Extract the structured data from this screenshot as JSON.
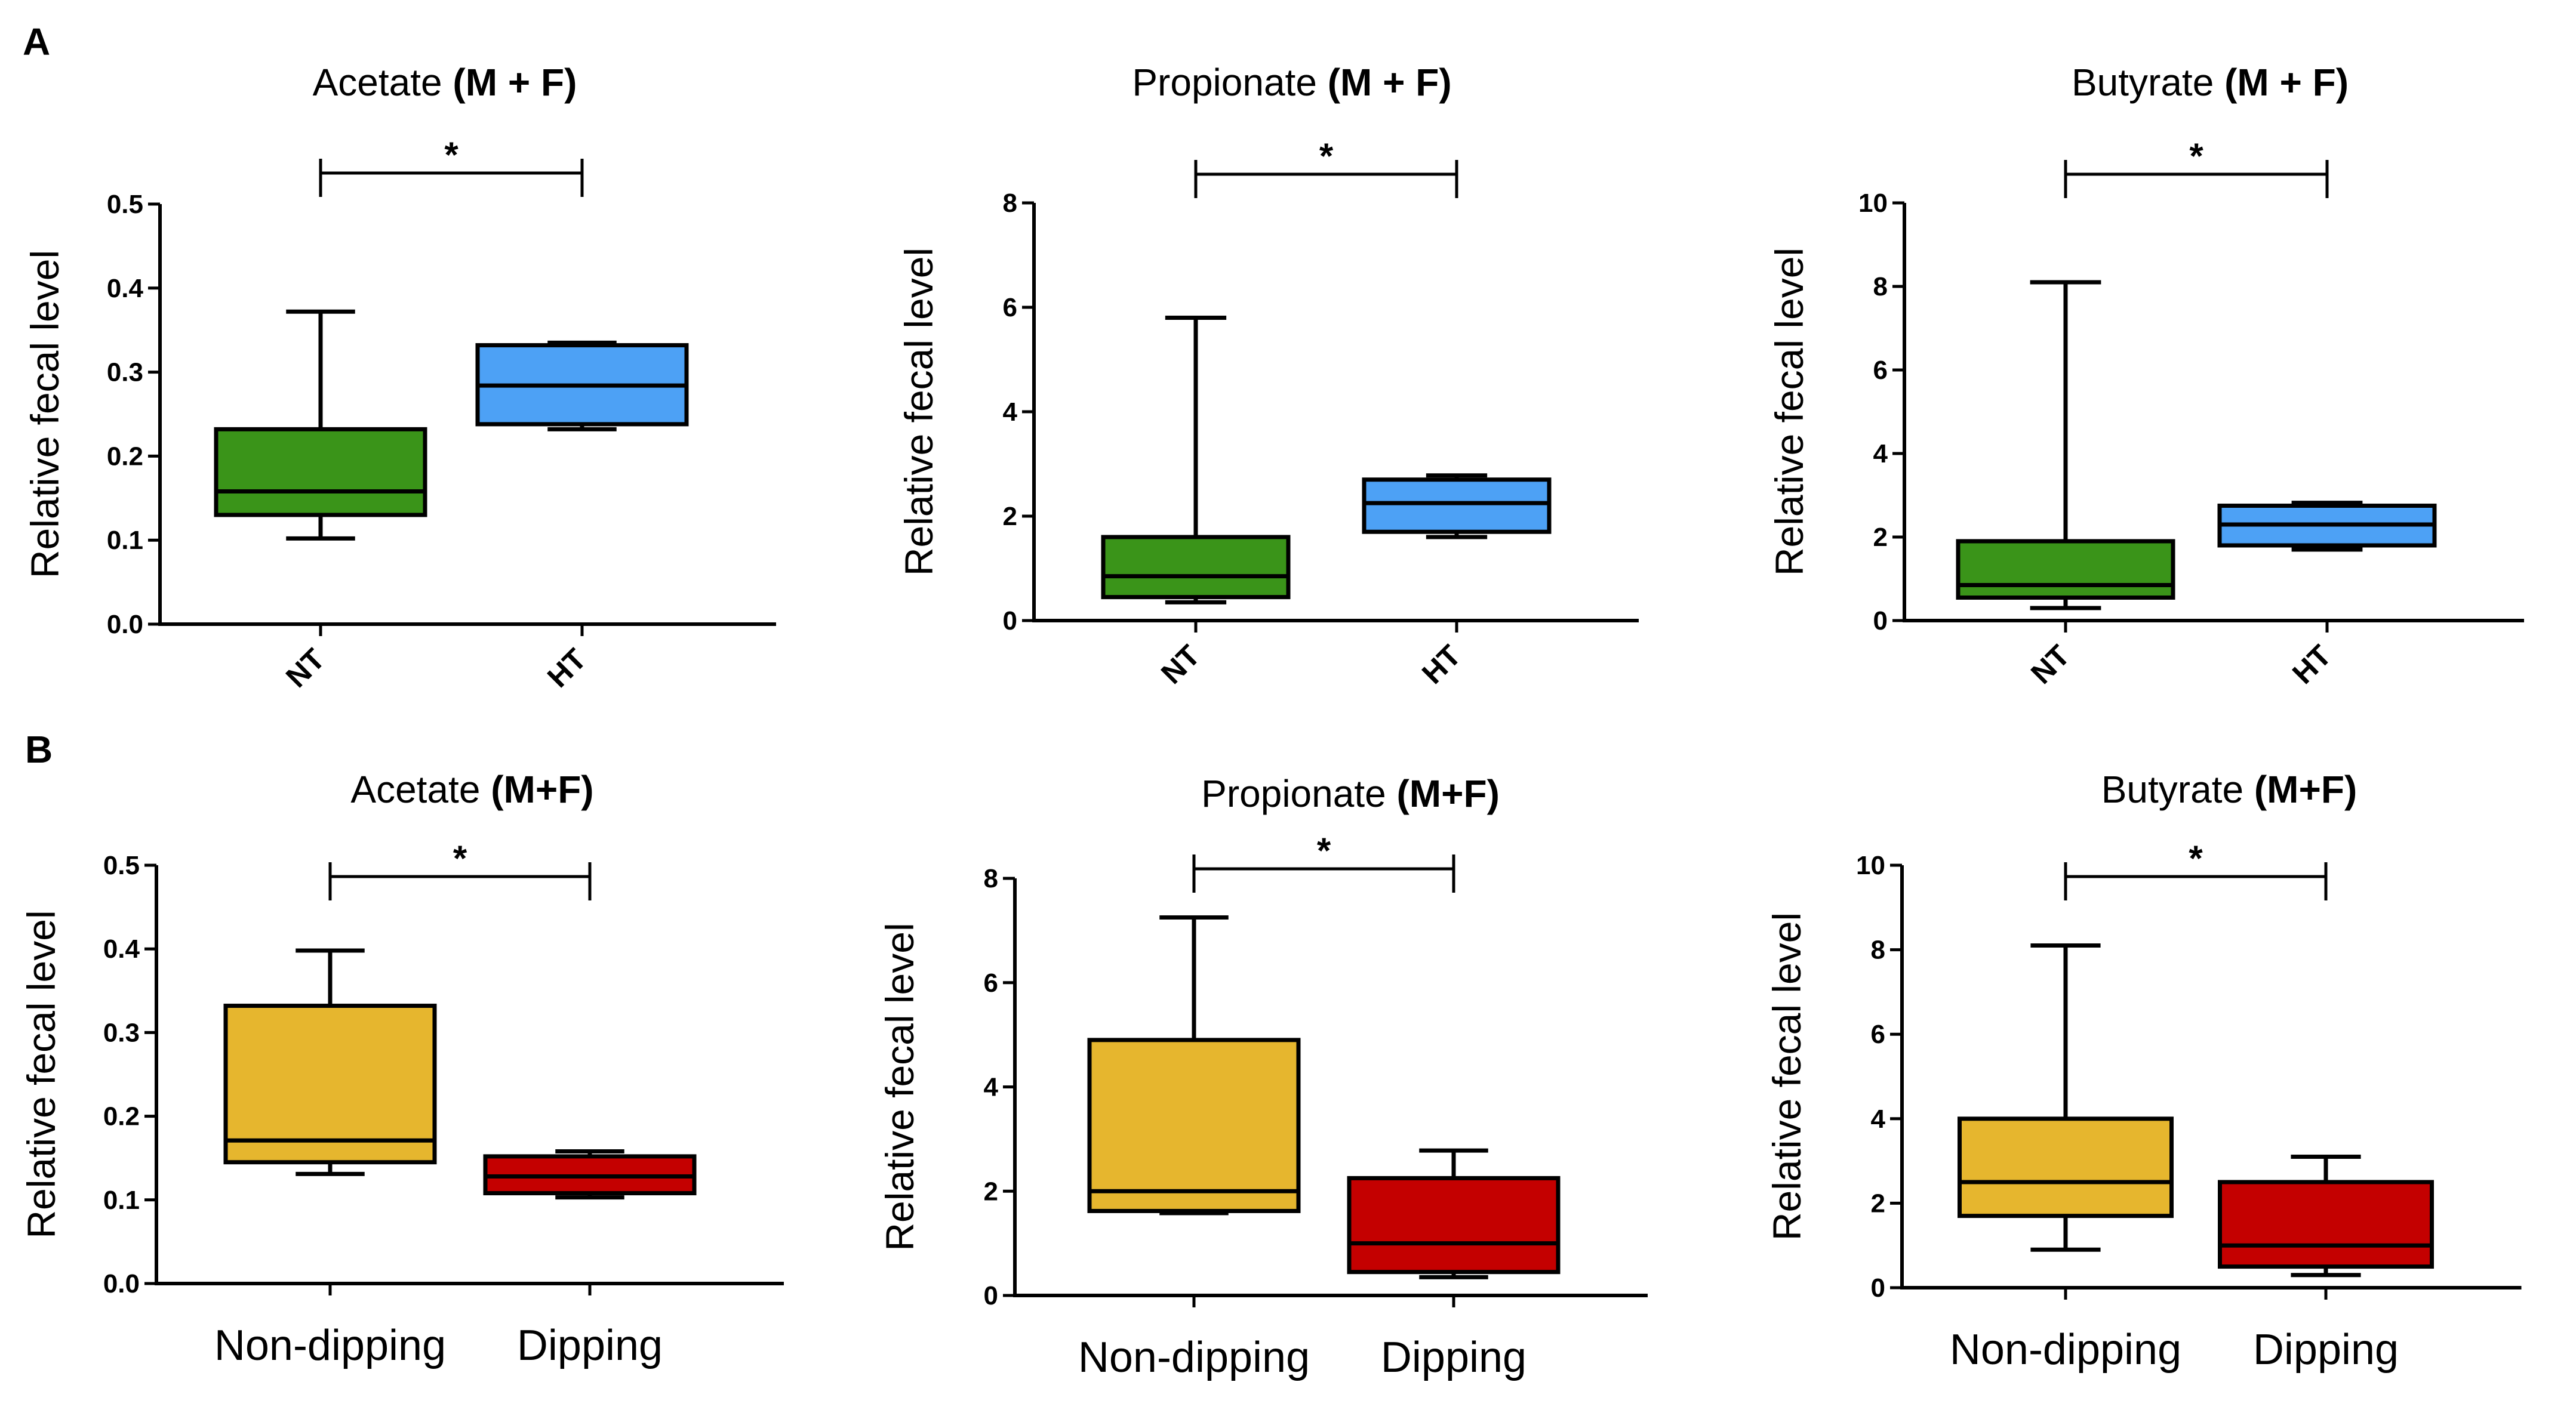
{
  "panel_labels": {
    "A": "A",
    "B": "B"
  },
  "colors": {
    "NT": "#3a9419",
    "HT": "#4da1f5",
    "Non-dipping": "#e6b62e",
    "Dipping": "#c40000",
    "line": "#000000"
  },
  "chart_data": [
    {
      "type": "box",
      "row": "A",
      "title_main": "Acetate ",
      "title_bold": "(M + F)",
      "ylabel": "Relative fecal level",
      "ylim": [
        0,
        0.5
      ],
      "yticks": [
        "0.0",
        "0.1",
        "0.2",
        "0.3",
        "0.4",
        "0.5"
      ],
      "categories": [
        "NT",
        "HT"
      ],
      "boxes": [
        {
          "group": "NT",
          "min": 0.102,
          "q1": 0.13,
          "median": 0.158,
          "q3": 0.232,
          "max": 0.372
        },
        {
          "group": "HT",
          "min": 0.232,
          "q1": 0.238,
          "median": 0.284,
          "q3": 0.332,
          "max": 0.335
        }
      ],
      "significance": "*"
    },
    {
      "type": "box",
      "row": "A",
      "title_main": "Propionate ",
      "title_bold": "(M + F)",
      "ylabel": "Relative fecal level",
      "ylim": [
        0,
        8
      ],
      "yticks": [
        "0",
        "2",
        "4",
        "6",
        "8"
      ],
      "categories": [
        "NT",
        "HT"
      ],
      "boxes": [
        {
          "group": "NT",
          "min": 0.35,
          "q1": 0.45,
          "median": 0.85,
          "q3": 1.6,
          "max": 5.8
        },
        {
          "group": "HT",
          "min": 1.6,
          "q1": 1.7,
          "median": 2.25,
          "q3": 2.7,
          "max": 2.78
        }
      ],
      "significance": "*"
    },
    {
      "type": "box",
      "row": "A",
      "title_main": "Butyrate ",
      "title_bold": "(M + F)",
      "ylabel": "Relative fecal level",
      "ylim": [
        0,
        10
      ],
      "yticks": [
        "0",
        "2",
        "4",
        "6",
        "8",
        "10"
      ],
      "categories": [
        "NT",
        "HT"
      ],
      "boxes": [
        {
          "group": "NT",
          "min": 0.3,
          "q1": 0.55,
          "median": 0.85,
          "q3": 1.9,
          "max": 8.1
        },
        {
          "group": "HT",
          "min": 1.7,
          "q1": 1.8,
          "median": 2.3,
          "q3": 2.75,
          "max": 2.82
        }
      ],
      "significance": "*"
    },
    {
      "type": "box",
      "row": "B",
      "title_main": "Acetate ",
      "title_bold": "(M+F)",
      "ylabel": "Relative fecal level",
      "ylim": [
        0,
        0.5
      ],
      "yticks": [
        "0.0",
        "0.1",
        "0.2",
        "0.3",
        "0.4",
        "0.5"
      ],
      "categories": [
        "Non-dipping",
        "Dipping"
      ],
      "boxes": [
        {
          "group": "Non-dipping",
          "min": 0.131,
          "q1": 0.145,
          "median": 0.171,
          "q3": 0.332,
          "max": 0.398
        },
        {
          "group": "Dipping",
          "min": 0.103,
          "q1": 0.108,
          "median": 0.128,
          "q3": 0.152,
          "max": 0.158
        }
      ],
      "significance": "*"
    },
    {
      "type": "box",
      "row": "B",
      "title_main": "Propionate ",
      "title_bold": "(M+F)",
      "ylabel": "Relative fecal level",
      "ylim": [
        0,
        8
      ],
      "yticks": [
        "0",
        "2",
        "4",
        "6",
        "8"
      ],
      "categories": [
        "Non-dipping",
        "Dipping"
      ],
      "boxes": [
        {
          "group": "Non-dipping",
          "min": 1.58,
          "q1": 1.62,
          "median": 2.0,
          "q3": 4.9,
          "max": 7.25
        },
        {
          "group": "Dipping",
          "min": 0.35,
          "q1": 0.45,
          "median": 1.0,
          "q3": 2.25,
          "max": 2.78
        }
      ],
      "significance": "*"
    },
    {
      "type": "box",
      "row": "B",
      "title_main": "Butyrate ",
      "title_bold": "(M+F)",
      "ylabel": "Relative fecal level",
      "ylim": [
        0,
        10
      ],
      "yticks": [
        "0",
        "2",
        "4",
        "6",
        "8",
        "10"
      ],
      "categories": [
        "Non-dipping",
        "Dipping"
      ],
      "boxes": [
        {
          "group": "Non-dipping",
          "min": 0.9,
          "q1": 1.7,
          "median": 2.5,
          "q3": 4.0,
          "max": 8.1
        },
        {
          "group": "Dipping",
          "min": 0.3,
          "q1": 0.5,
          "median": 1.0,
          "q3": 2.5,
          "max": 3.1
        }
      ],
      "significance": "*"
    }
  ]
}
